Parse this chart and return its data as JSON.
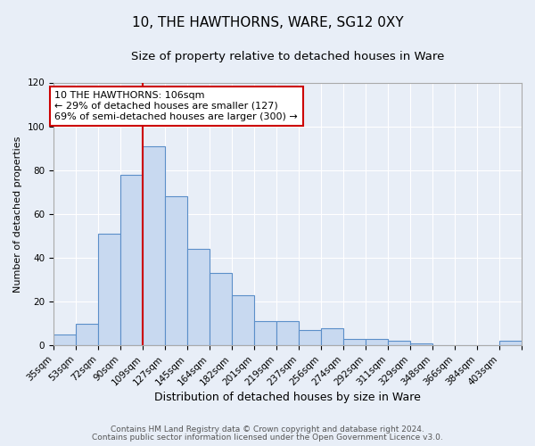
{
  "title": "10, THE HAWTHORNS, WARE, SG12 0XY",
  "subtitle": "Size of property relative to detached houses in Ware",
  "xlabel": "Distribution of detached houses by size in Ware",
  "ylabel": "Number of detached properties",
  "bar_labels": [
    "35sqm",
    "53sqm",
    "72sqm",
    "90sqm",
    "109sqm",
    "127sqm",
    "145sqm",
    "164sqm",
    "182sqm",
    "201sqm",
    "219sqm",
    "237sqm",
    "256sqm",
    "274sqm",
    "292sqm",
    "311sqm",
    "329sqm",
    "348sqm",
    "366sqm",
    "384sqm",
    "403sqm"
  ],
  "bar_values": [
    5,
    10,
    51,
    78,
    91,
    68,
    44,
    33,
    23,
    11,
    11,
    7,
    8,
    3,
    3,
    2,
    1,
    0,
    0,
    0,
    2
  ],
  "vline_bar_index": 4,
  "bar_color": "#c8d9f0",
  "bar_edge_color": "#5b8fc9",
  "vline_color": "#cc0000",
  "annotation_text": "10 THE HAWTHORNS: 106sqm\n← 29% of detached houses are smaller (127)\n69% of semi-detached houses are larger (300) →",
  "annotation_box_facecolor": "#ffffff",
  "annotation_box_edgecolor": "#cc0000",
  "ylim": [
    0,
    120
  ],
  "yticks": [
    0,
    20,
    40,
    60,
    80,
    100,
    120
  ],
  "bg_color": "#e8eef7",
  "plot_bg_color": "#e8eef7",
  "footer_line1": "Contains HM Land Registry data © Crown copyright and database right 2024.",
  "footer_line2": "Contains public sector information licensed under the Open Government Licence v3.0.",
  "title_fontsize": 11,
  "subtitle_fontsize": 9.5,
  "xlabel_fontsize": 9,
  "ylabel_fontsize": 8,
  "tick_fontsize": 7.5,
  "annotation_fontsize": 8,
  "footer_fontsize": 6.5,
  "grid_color": "#ffffff",
  "spine_color": "#aaaaaa"
}
